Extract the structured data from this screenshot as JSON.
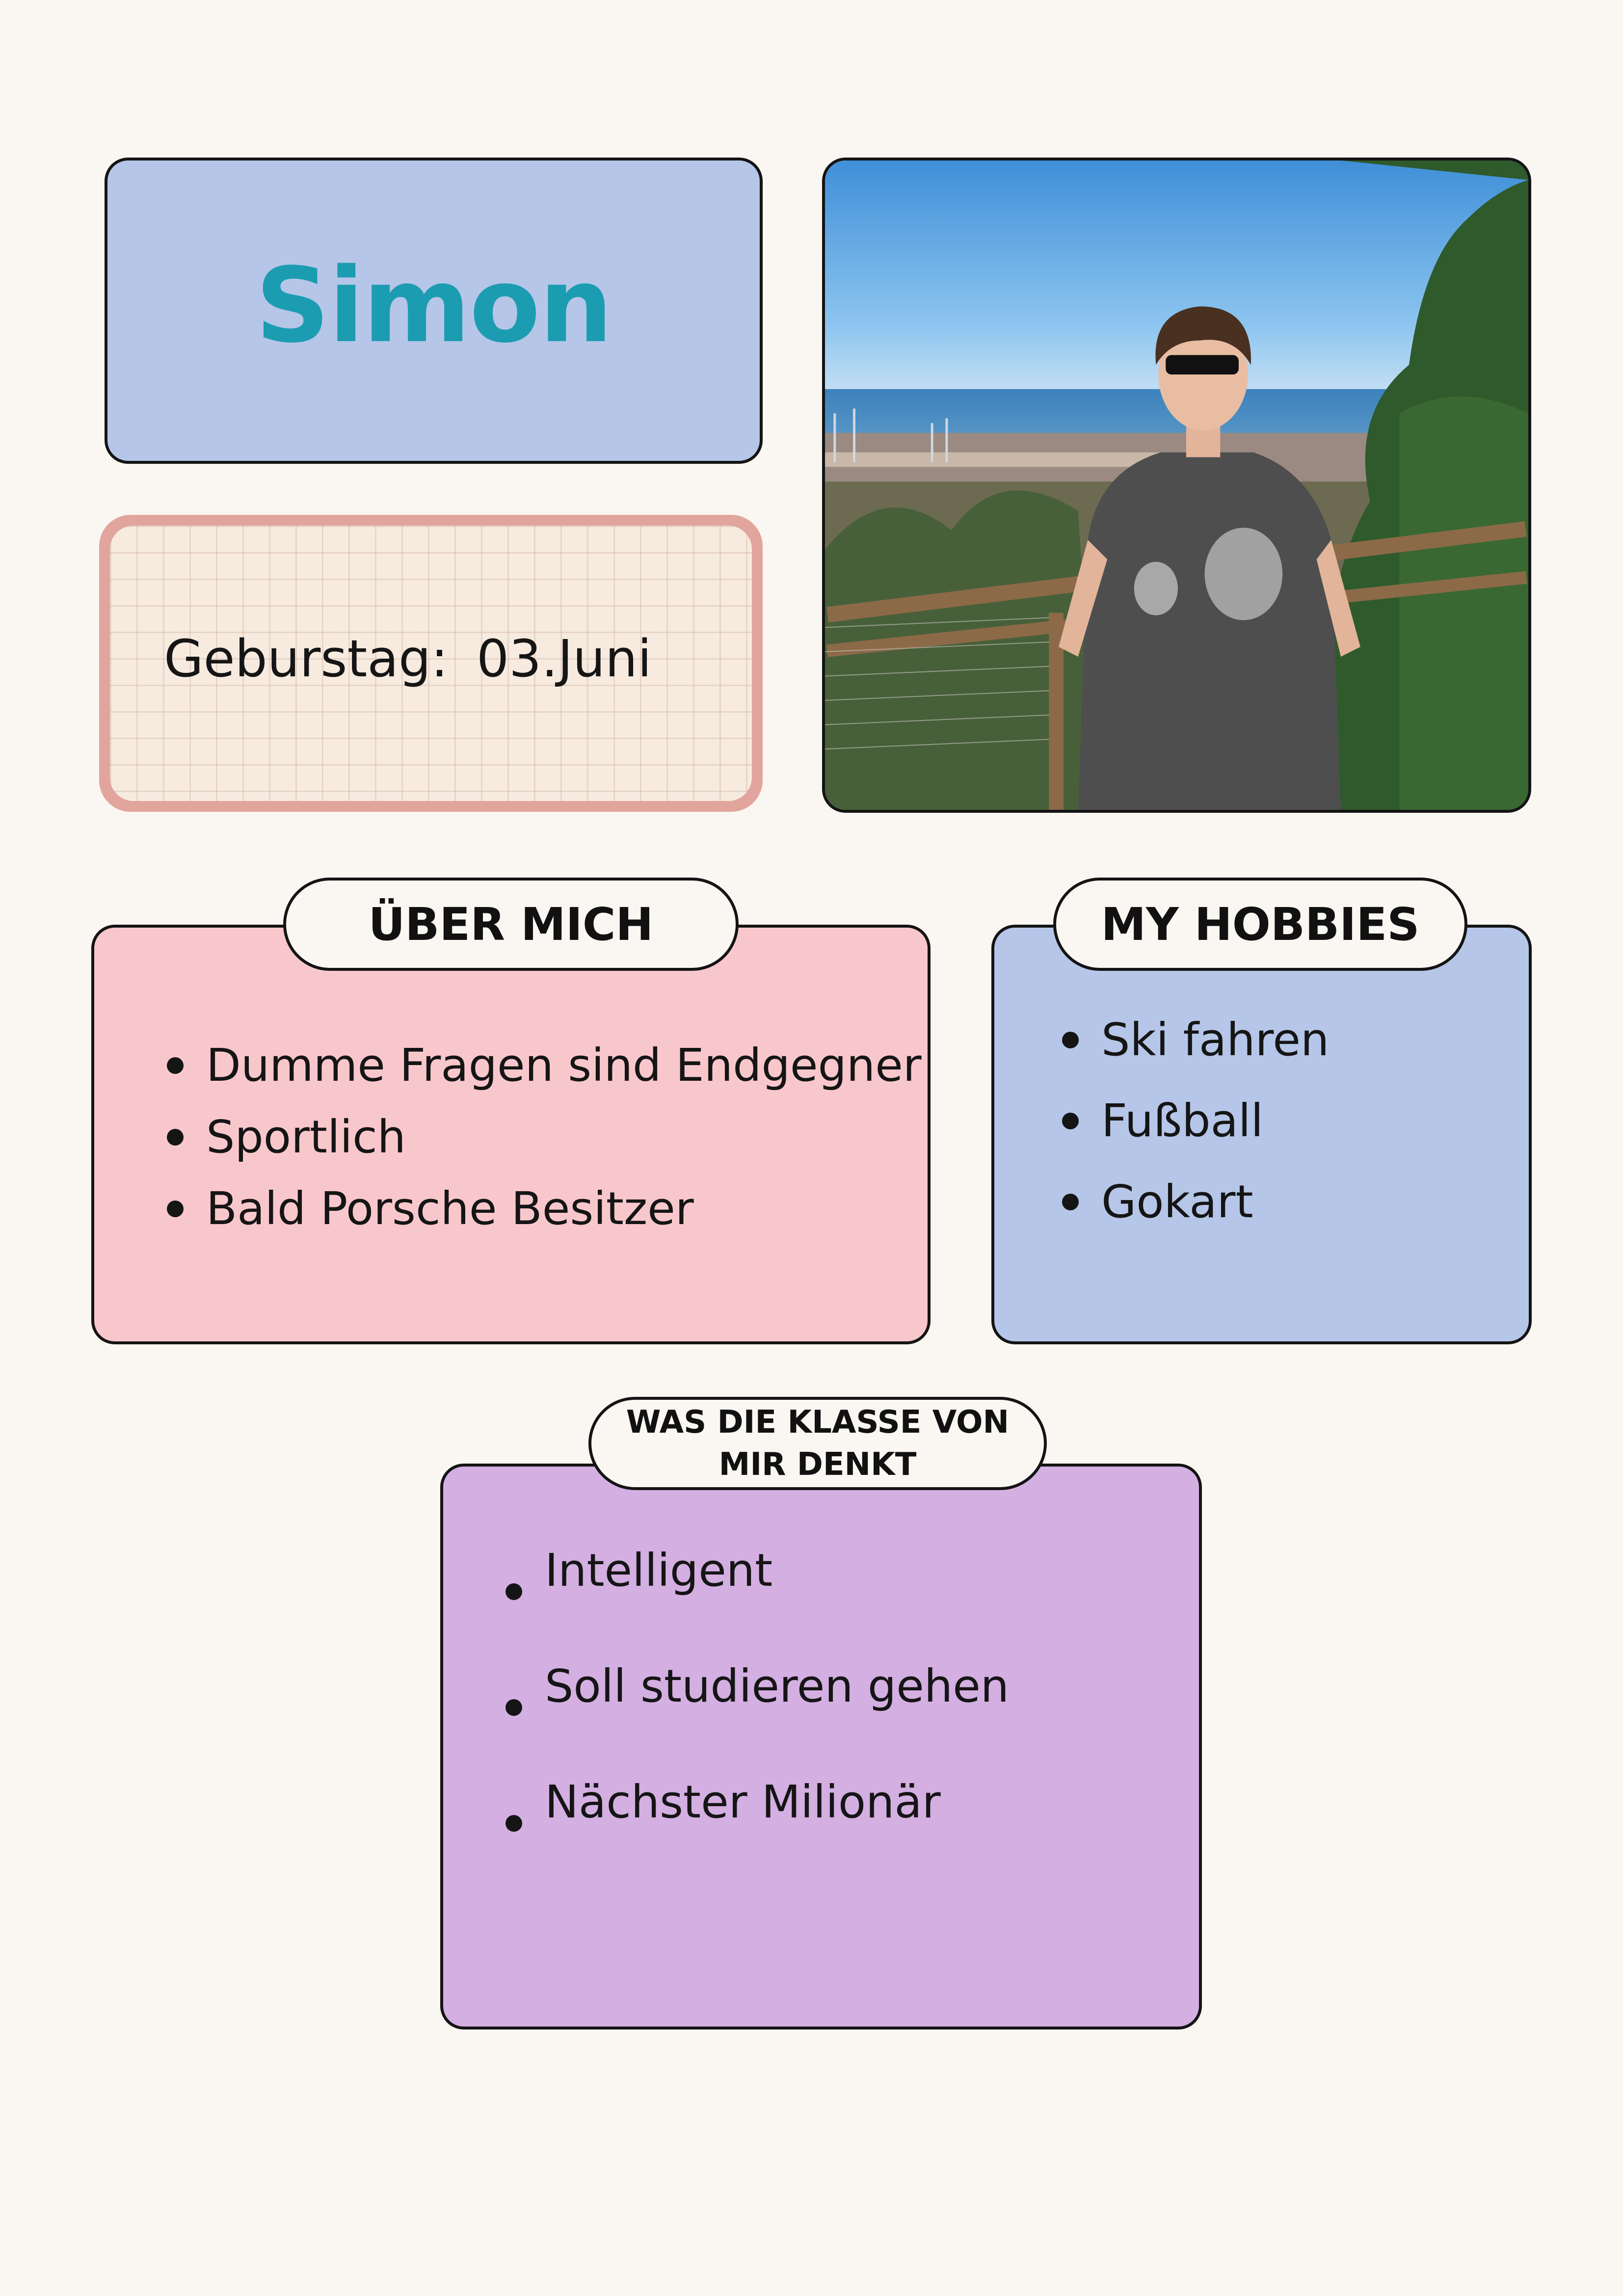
{
  "profile": {
    "name": "Simon",
    "birthday_label": "Geburstag:",
    "birthday_value": "03.Juni",
    "photo_icon": "portrait-photo"
  },
  "about": {
    "title": "ÜBER MICH",
    "items": [
      "Dumme Fragen sind Endgegner",
      "Sportlich",
      "Bald Porsche Besitzer"
    ]
  },
  "hobbies": {
    "title": "MY HOBBIES",
    "items": [
      "Ski fahren",
      "Fußball",
      "Gokart"
    ]
  },
  "class_opinion": {
    "title": "WAS DIE KLASSE VON MIR DENKT",
    "items": [
      "Intelligent",
      "Soll studieren gehen",
      "Nächster Milionär"
    ]
  },
  "colors": {
    "page_background": "#faf6f2",
    "name_card": "#b5c6e8",
    "name_text": "#1c9cb0",
    "birthday_border": "#e1a59d",
    "birthday_fill": "#f7ebe0",
    "about_card": "#f8c7cc",
    "hobby_card": "#b5c6e8",
    "class_card": "#d4afe2",
    "outline": "#141414"
  }
}
